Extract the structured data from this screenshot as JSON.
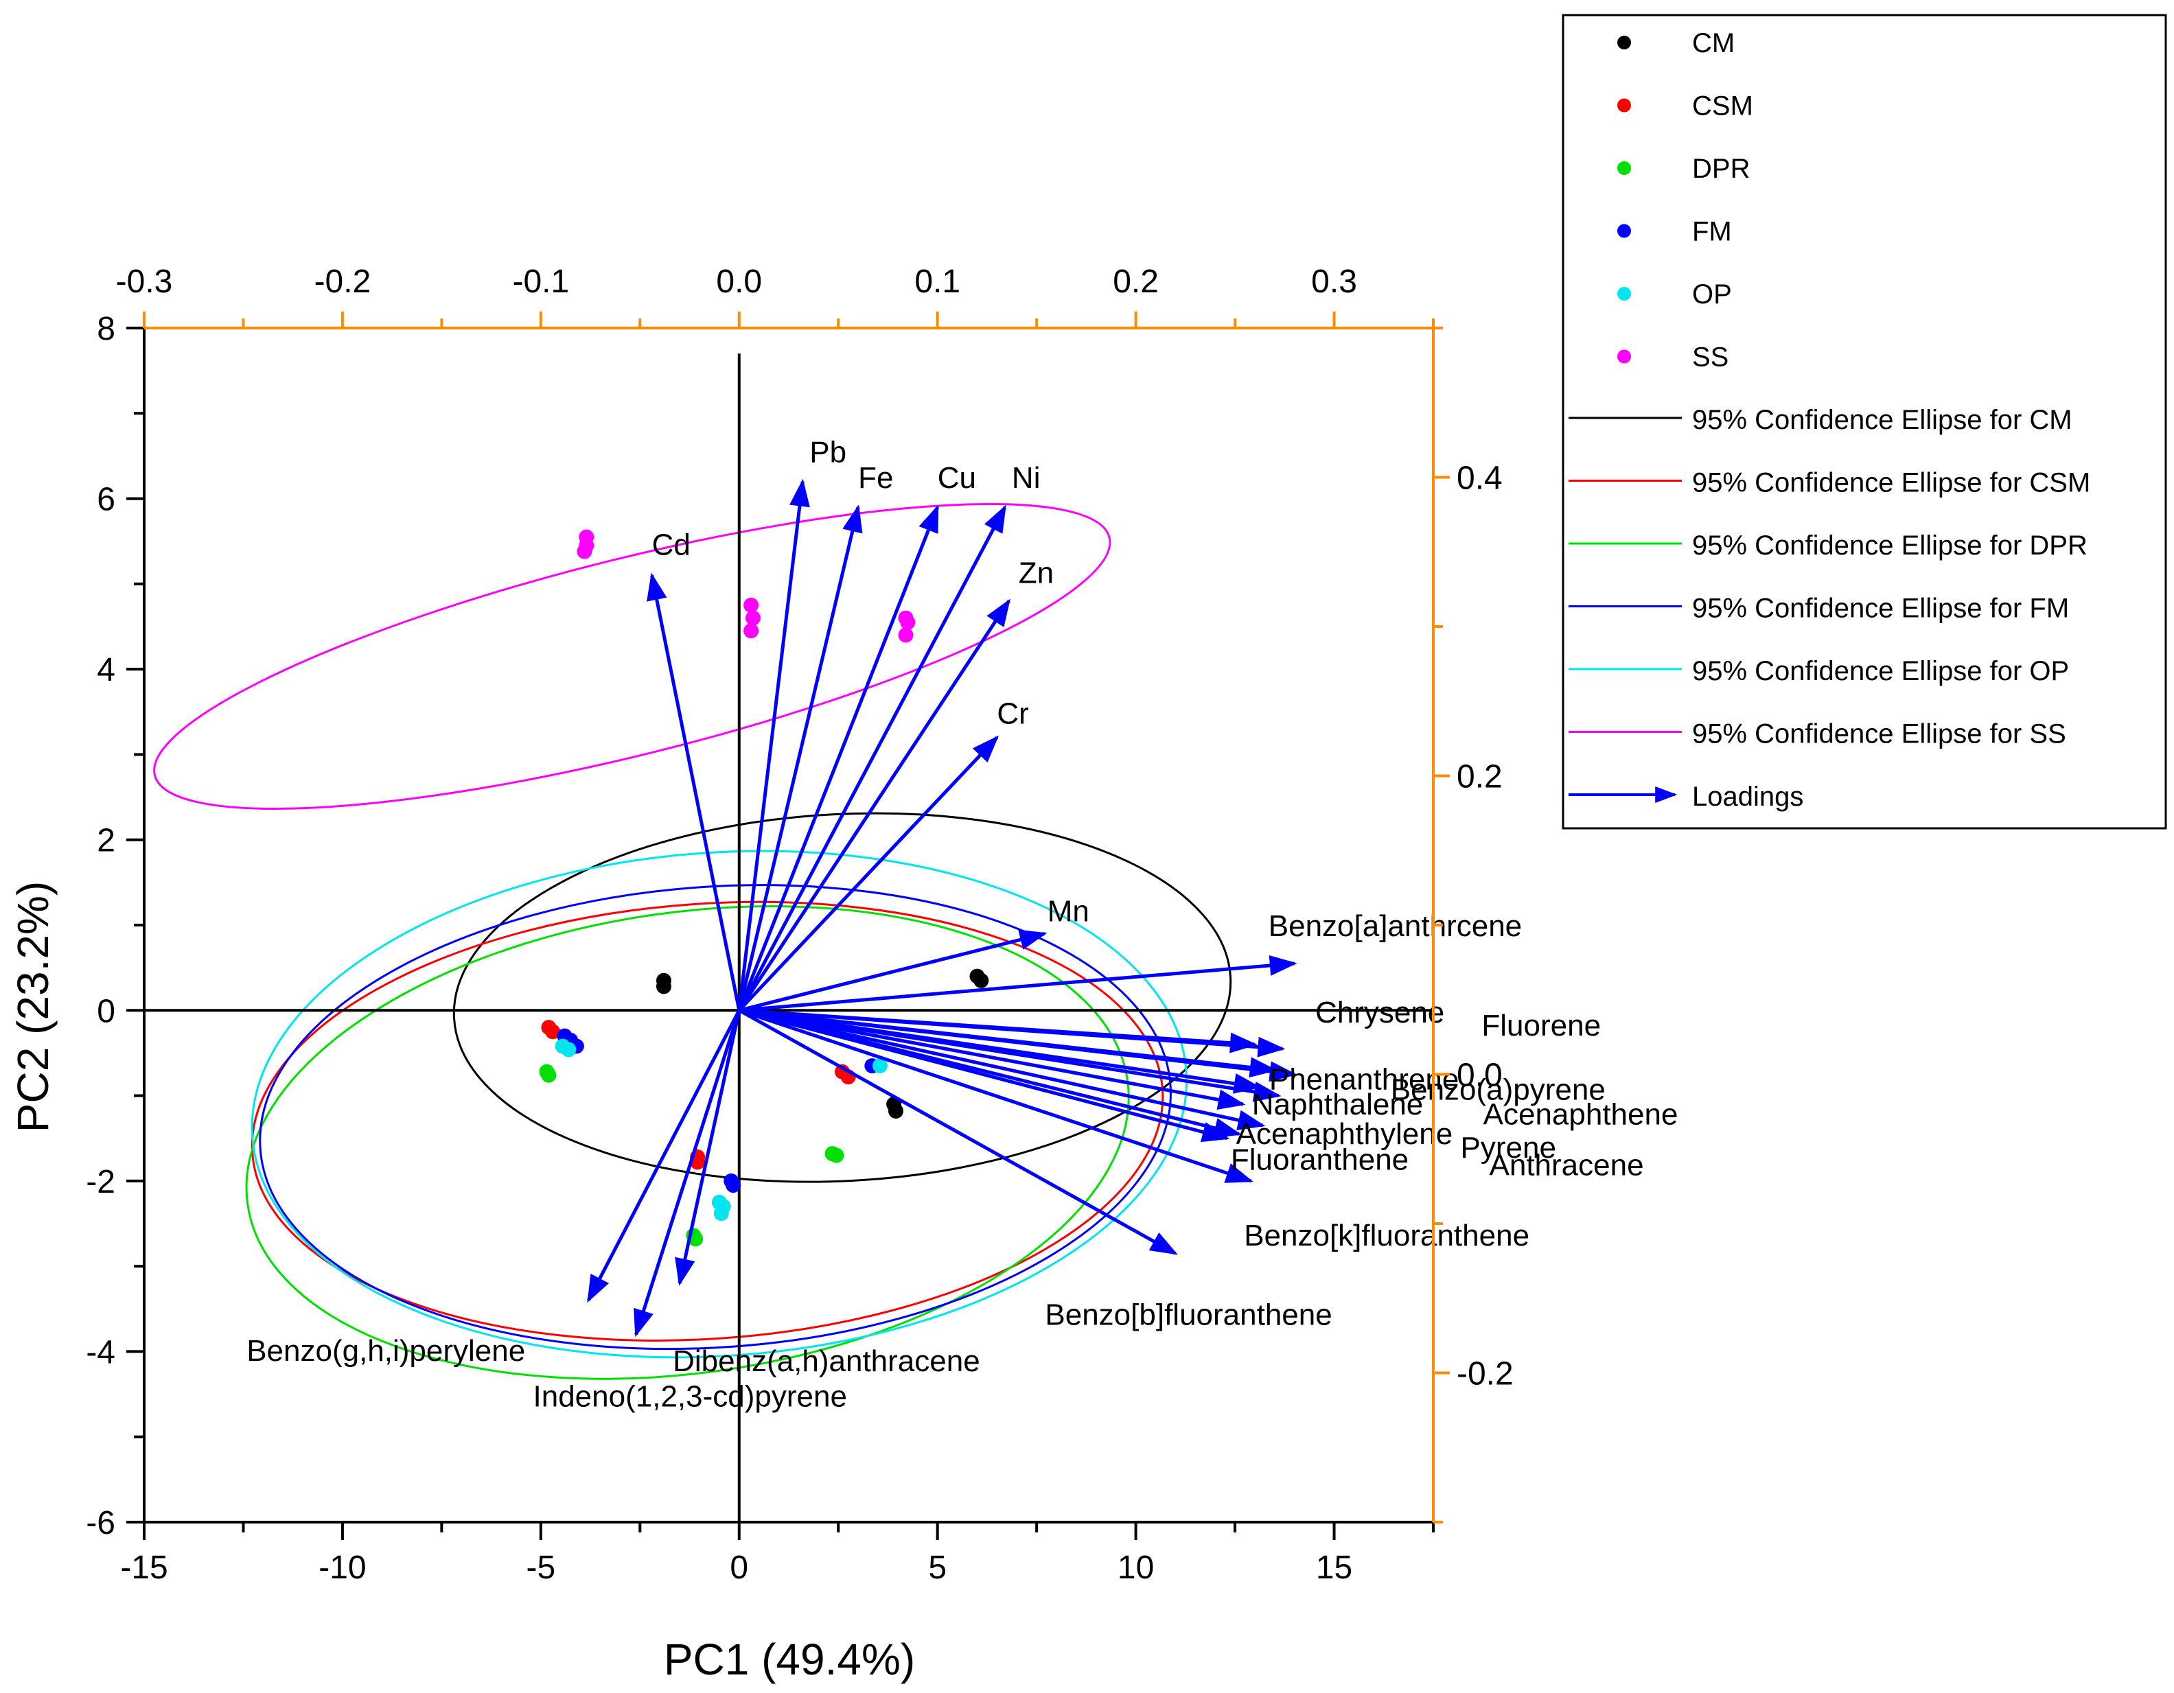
{
  "chart_data": {
    "type": "scatter",
    "subtype": "pca-biplot",
    "title": "",
    "xlabel": "PC1 (49.4%)",
    "ylabel": "PC2 (23.2%)",
    "xlim": [
      -15,
      17.5
    ],
    "ylim": [
      -6,
      8
    ],
    "xticks": [
      -15,
      -10,
      -5,
      0,
      5,
      10,
      15
    ],
    "yticks": [
      -6,
      -4,
      -2,
      0,
      2,
      4,
      6,
      8
    ],
    "xtick_labels": [
      "-15",
      "-10",
      "-5",
      "0",
      "5",
      "10",
      "15"
    ],
    "ytick_labels": [
      "-6",
      "-4",
      "-2",
      "0",
      "2",
      "4",
      "6",
      "8"
    ],
    "top_axis": {
      "lim": [
        -0.3,
        0.35
      ],
      "ticks": [
        -0.3,
        -0.2,
        -0.1,
        0.0,
        0.1,
        0.2,
        0.3
      ],
      "tick_labels": [
        "-0.3",
        "-0.2",
        "-0.1",
        "0.0",
        "0.1",
        "0.2",
        "0.3"
      ]
    },
    "right_axis": {
      "lim": [
        -0.3,
        0.5
      ],
      "ticks": [
        -0.2,
        0.0,
        0.2,
        0.4
      ],
      "tick_labels": [
        "-0.2",
        "0.0",
        "0.2",
        "0.4"
      ]
    },
    "axis_color": "#ff8c00",
    "grid": false,
    "legend_position": "top-right",
    "series": [
      {
        "name": "CM",
        "color": "#000000",
        "points": [
          [
            -1.9,
            0.35
          ],
          [
            -1.9,
            0.28
          ],
          [
            6.0,
            0.4
          ],
          [
            6.1,
            0.35
          ],
          [
            3.9,
            -1.1
          ],
          [
            3.95,
            -1.18
          ]
        ]
      },
      {
        "name": "CSM",
        "color": "#ff0000",
        "points": [
          [
            -4.8,
            -0.2
          ],
          [
            -4.7,
            -0.25
          ],
          [
            2.6,
            -0.72
          ],
          [
            2.75,
            -0.78
          ],
          [
            -1.05,
            -1.72
          ],
          [
            -1.05,
            -1.78
          ]
        ]
      },
      {
        "name": "DPR",
        "color": "#00e000",
        "points": [
          [
            -4.85,
            -0.72
          ],
          [
            -4.8,
            -0.76
          ],
          [
            2.35,
            -1.68
          ],
          [
            2.45,
            -1.7
          ],
          [
            -1.15,
            -2.64
          ],
          [
            -1.1,
            -2.68
          ]
        ]
      },
      {
        "name": "FM",
        "color": "#0000ff",
        "points": [
          [
            -4.4,
            -0.3
          ],
          [
            -4.25,
            -0.35
          ],
          [
            -4.1,
            -0.42
          ],
          [
            3.35,
            -0.65
          ],
          [
            -0.2,
            -2.0
          ],
          [
            -0.15,
            -2.05
          ]
        ]
      },
      {
        "name": "OP",
        "color": "#00e5ee",
        "points": [
          [
            -4.45,
            -0.42
          ],
          [
            -4.3,
            -0.46
          ],
          [
            3.55,
            -0.65
          ],
          [
            -0.5,
            -2.25
          ],
          [
            -0.4,
            -2.3
          ],
          [
            -0.45,
            -2.38
          ]
        ]
      },
      {
        "name": "SS",
        "color": "#ff00ff",
        "points": [
          [
            -3.85,
            5.55
          ],
          [
            -3.85,
            5.45
          ],
          [
            -3.9,
            5.38
          ],
          [
            0.3,
            4.75
          ],
          [
            0.35,
            4.6
          ],
          [
            0.3,
            4.45
          ],
          [
            4.2,
            4.6
          ],
          [
            4.25,
            4.55
          ],
          [
            4.2,
            4.4
          ]
        ]
      }
    ],
    "ellipses": [
      {
        "name": "95% Confidence Ellipse for CM",
        "color": "#000000",
        "center": [
          2.6,
          0.15
        ],
        "radii": [
          9.8,
          2.15
        ],
        "angle_deg": -3
      },
      {
        "name": "95% Confidence Ellipse for CSM",
        "color": "#ff0000",
        "center": [
          -0.8,
          -1.3
        ],
        "radii": [
          11.5,
          2.55
        ],
        "angle_deg": -4
      },
      {
        "name": "95% Confidence Ellipse for DPR",
        "color": "#00e000",
        "center": [
          -1.3,
          -1.55
        ],
        "radii": [
          11.2,
          2.7
        ],
        "angle_deg": -8
      },
      {
        "name": "95% Confidence Ellipse for FM",
        "color": "#0000ff",
        "center": [
          -0.6,
          -1.25
        ],
        "radii": [
          11.5,
          2.7
        ],
        "angle_deg": -4
      },
      {
        "name": "95% Confidence Ellipse for OP",
        "color": "#00e5ee",
        "center": [
          -0.5,
          -1.1
        ],
        "radii": [
          11.8,
          2.95
        ],
        "angle_deg": -4
      },
      {
        "name": "95% Confidence Ellipse for SS",
        "color": "#ff00ff",
        "center": [
          -2.7,
          4.15
        ],
        "radii": [
          12.4,
          1.15
        ],
        "angle_deg": -14
      }
    ],
    "loadings": {
      "name": "Loadings",
      "color": "#0000ff",
      "vectors": [
        {
          "label": "Pb",
          "x": 1.6,
          "y": 6.2
        },
        {
          "label": "Fe",
          "x": 3.0,
          "y": 5.9
        },
        {
          "label": "Cu",
          "x": 5.0,
          "y": 5.9
        },
        {
          "label": "Ni",
          "x": 6.7,
          "y": 5.9
        },
        {
          "label": "Cd",
          "x": -2.2,
          "y": 5.1
        },
        {
          "label": "Zn",
          "x": 6.8,
          "y": 4.8
        },
        {
          "label": "Cr",
          "x": 6.5,
          "y": 3.2
        },
        {
          "label": "Mn",
          "x": 7.7,
          "y": 0.9
        },
        {
          "label": "Benzo[a]anthrcene",
          "x": 14.0,
          "y": 0.55
        },
        {
          "label": "Chrysene",
          "x": 13.0,
          "y": -0.4
        },
        {
          "label": "Fluorene",
          "x": 13.7,
          "y": -0.45
        },
        {
          "label": "Phenanthrene",
          "x": 13.5,
          "y": -0.7
        },
        {
          "label": "Benzo(a)pyrene",
          "x": 14.0,
          "y": -0.75
        },
        {
          "label": "Naphthalene",
          "x": 13.1,
          "y": -0.9
        },
        {
          "label": "Acenaphthene",
          "x": 13.6,
          "y": -1.0
        },
        {
          "label": "Acenaphthylene",
          "x": 12.7,
          "y": -1.1
        },
        {
          "label": "Pyrene",
          "x": 13.2,
          "y": -1.35
        },
        {
          "label": "Fluoranthene",
          "x": 12.6,
          "y": -1.45
        },
        {
          "label": "Anthracene",
          "x": 12.3,
          "y": -1.5
        },
        {
          "label": "Benzo[k]fluoranthene",
          "x": 12.9,
          "y": -2.0
        },
        {
          "label": "Benzo[b]fluoranthene",
          "x": 11.0,
          "y": -2.85
        },
        {
          "label": "Benzo(g,h,i)perylene",
          "x": -3.8,
          "y": -3.4
        },
        {
          "label": "Dibenz(a,h)anthracene",
          "x": -1.5,
          "y": -3.2
        },
        {
          "label": "Indeno(1,2,3-cd)pyrene",
          "x": -2.6,
          "y": -3.8
        }
      ]
    }
  },
  "legend": {
    "items": [
      {
        "label": "CM",
        "kind": "dot",
        "color": "#000000"
      },
      {
        "label": "CSM",
        "kind": "dot",
        "color": "#ff0000"
      },
      {
        "label": "DPR",
        "kind": "dot",
        "color": "#00e000"
      },
      {
        "label": "FM",
        "kind": "dot",
        "color": "#0000ff"
      },
      {
        "label": "OP",
        "kind": "dot",
        "color": "#00e5ee"
      },
      {
        "label": "SS",
        "kind": "dot",
        "color": "#ff00ff"
      },
      {
        "label": "95% Confidence Ellipse for CM",
        "kind": "line",
        "color": "#000000"
      },
      {
        "label": "95% Confidence Ellipse for CSM",
        "kind": "line",
        "color": "#ff0000"
      },
      {
        "label": "95% Confidence Ellipse for DPR",
        "kind": "line",
        "color": "#00e000"
      },
      {
        "label": "95% Confidence Ellipse for FM",
        "kind": "line",
        "color": "#0000ff"
      },
      {
        "label": "95% Confidence Ellipse for OP",
        "kind": "line",
        "color": "#00e5ee"
      },
      {
        "label": "95% Confidence Ellipse for SS",
        "kind": "line",
        "color": "#ff00ff"
      },
      {
        "label": "Loadings",
        "kind": "arrow",
        "color": "#0000ff"
      }
    ]
  }
}
